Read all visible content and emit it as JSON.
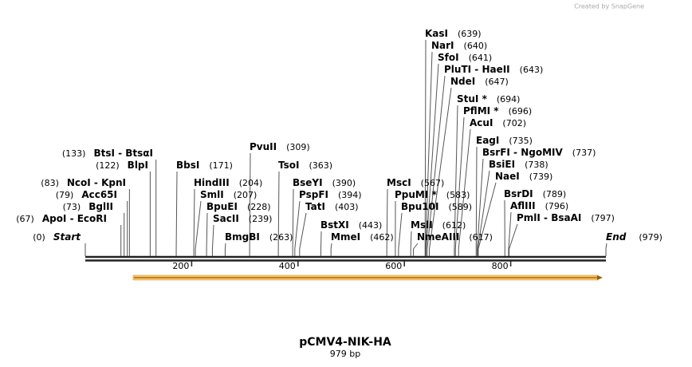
{
  "brand": "Created by SnapGene",
  "map": {
    "title": "pCMV4-NIK-HA",
    "subtitle": "979 bp",
    "length": 979,
    "ruler_ticks": [
      200,
      400,
      600,
      800
    ],
    "sites": [
      {
        "name": "KasI",
        "position": {
          "value": 639,
          "label": "(639)"
        }
      },
      {
        "name": "NarI",
        "position": {
          "value": 640,
          "label": "(640)"
        }
      },
      {
        "name": "SfoI",
        "position": {
          "value": 641,
          "label": "(641)"
        }
      },
      {
        "name": "PluTI  -  HaeII",
        "position": {
          "value": 643,
          "label": "(643)"
        }
      },
      {
        "name": "NdeI",
        "position": {
          "value": 647,
          "label": "(647)"
        }
      },
      {
        "name": "StuI *",
        "position": {
          "value": 694,
          "label": "(694)"
        }
      },
      {
        "name": "PflMI *",
        "position": {
          "value": 696,
          "label": "(696)"
        }
      },
      {
        "name": "AcuI",
        "position": {
          "value": 702,
          "label": "(702)"
        }
      },
      {
        "name": "EagI",
        "position": {
          "value": 735,
          "label": "(735)"
        }
      },
      {
        "name": "BsrFI  -  NgoMIV",
        "position": {
          "value": 737,
          "label": "(737)"
        }
      },
      {
        "name": "BsiEI",
        "position": {
          "value": 738,
          "label": "(738)"
        }
      },
      {
        "name": "NaeI",
        "position": {
          "value": 739,
          "label": "(739)"
        }
      },
      {
        "name": "BsrDI",
        "position": {
          "value": 789,
          "label": "(789)"
        }
      },
      {
        "name": "AflIII",
        "position": {
          "value": 796,
          "label": "(796)"
        }
      },
      {
        "name": "PmlI  -  BsaAI",
        "position": {
          "value": 797,
          "label": "(797)"
        }
      },
      {
        "name": "End",
        "position": {
          "value": 979,
          "label": "(979)"
        }
      },
      {
        "name": "PvuII",
        "position": {
          "value": 309,
          "label": "(309)"
        }
      },
      {
        "name": "BtsI  -  BtsαI",
        "position": {
          "value": 133,
          "label": "(133)"
        }
      },
      {
        "name": "BlpI",
        "position": {
          "value": 122,
          "label": "(122)"
        }
      },
      {
        "name": "BbsI",
        "position": {
          "value": 171,
          "label": "(171)"
        }
      },
      {
        "name": "TsoI",
        "position": {
          "value": 363,
          "label": "(363)"
        }
      },
      {
        "name": "NcoI  -  KpnI",
        "position": {
          "value": 83,
          "label": "(83)"
        }
      },
      {
        "name": "HindIII",
        "position": {
          "value": 204,
          "label": "(204)"
        }
      },
      {
        "name": "BseYI",
        "position": {
          "value": 390,
          "label": "(390)"
        }
      },
      {
        "name": "MscI",
        "position": {
          "value": 567,
          "label": "(567)"
        }
      },
      {
        "name": "Acc65I",
        "position": {
          "value": 79,
          "label": "(79)"
        }
      },
      {
        "name": "SmlI",
        "position": {
          "value": 207,
          "label": "(207)"
        }
      },
      {
        "name": "PspFI",
        "position": {
          "value": 394,
          "label": "(394)"
        }
      },
      {
        "name": "PpuMI *",
        "position": {
          "value": 583,
          "label": "(583)"
        }
      },
      {
        "name": "BglII",
        "position": {
          "value": 73,
          "label": "(73)"
        }
      },
      {
        "name": "BpuEI",
        "position": {
          "value": 228,
          "label": "(228)"
        }
      },
      {
        "name": "TatI",
        "position": {
          "value": 403,
          "label": "(403)"
        }
      },
      {
        "name": "Bpu10I",
        "position": {
          "value": 589,
          "label": "(589)"
        }
      },
      {
        "name": "ApoI  -  EcoRI",
        "position": {
          "value": 67,
          "label": "(67)"
        }
      },
      {
        "name": "SacII",
        "position": {
          "value": 239,
          "label": "(239)"
        }
      },
      {
        "name": "BstXI",
        "position": {
          "value": 443,
          "label": "(443)"
        }
      },
      {
        "name": "MslI",
        "position": {
          "value": 612,
          "label": "(612)"
        }
      },
      {
        "name": "Start",
        "position": {
          "value": 0,
          "label": "(0)"
        }
      },
      {
        "name": "BmgBI",
        "position": {
          "value": 263,
          "label": "(263)"
        }
      },
      {
        "name": "MmeI",
        "position": {
          "value": 462,
          "label": "(462)"
        }
      },
      {
        "name": "NmeAIII",
        "position": {
          "value": 617,
          "label": "(617)"
        }
      }
    ]
  }
}
